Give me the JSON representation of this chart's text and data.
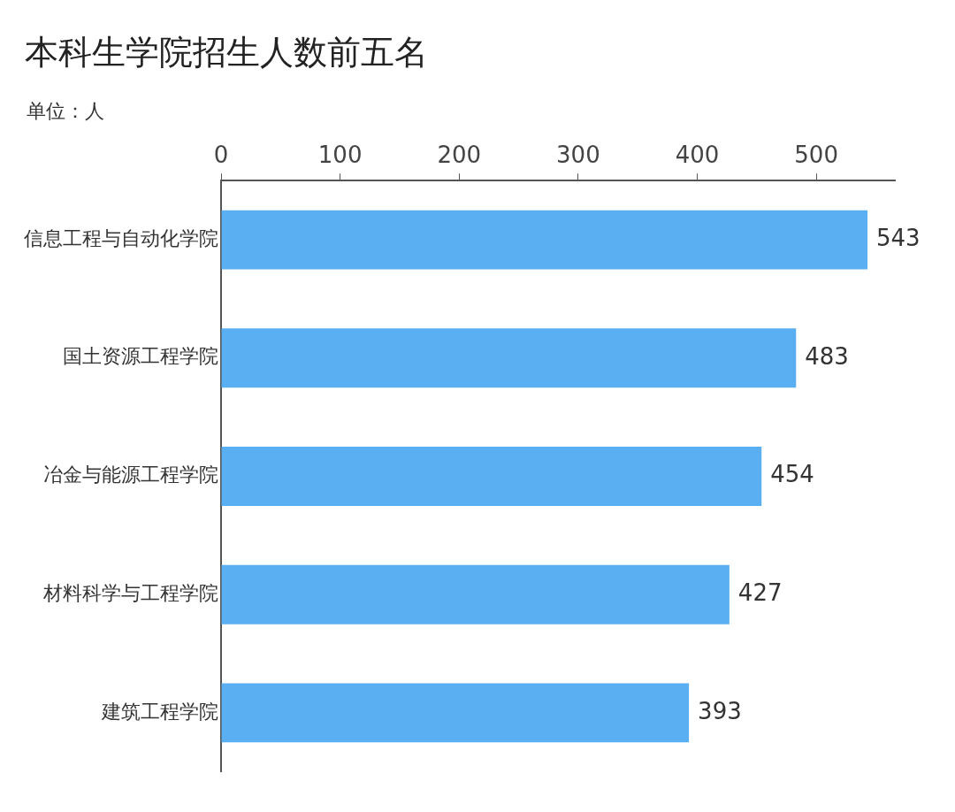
{
  "chart_data": {
    "type": "bar",
    "title": "本科生学院招生人数前五名",
    "subtitle": "单位：人",
    "orientation": "horizontal",
    "categories": [
      "信息工程与自动化学院",
      "国土资源工程学院",
      "冶金与能源工程学院",
      "材料科学与工程学院",
      "建筑工程学院"
    ],
    "values": [
      543,
      483,
      454,
      427,
      393
    ],
    "color": "#5aaef2",
    "xlim": [
      0,
      566
    ],
    "xticks": [
      0,
      100,
      200,
      300,
      400,
      500
    ],
    "data_labels": true
  }
}
